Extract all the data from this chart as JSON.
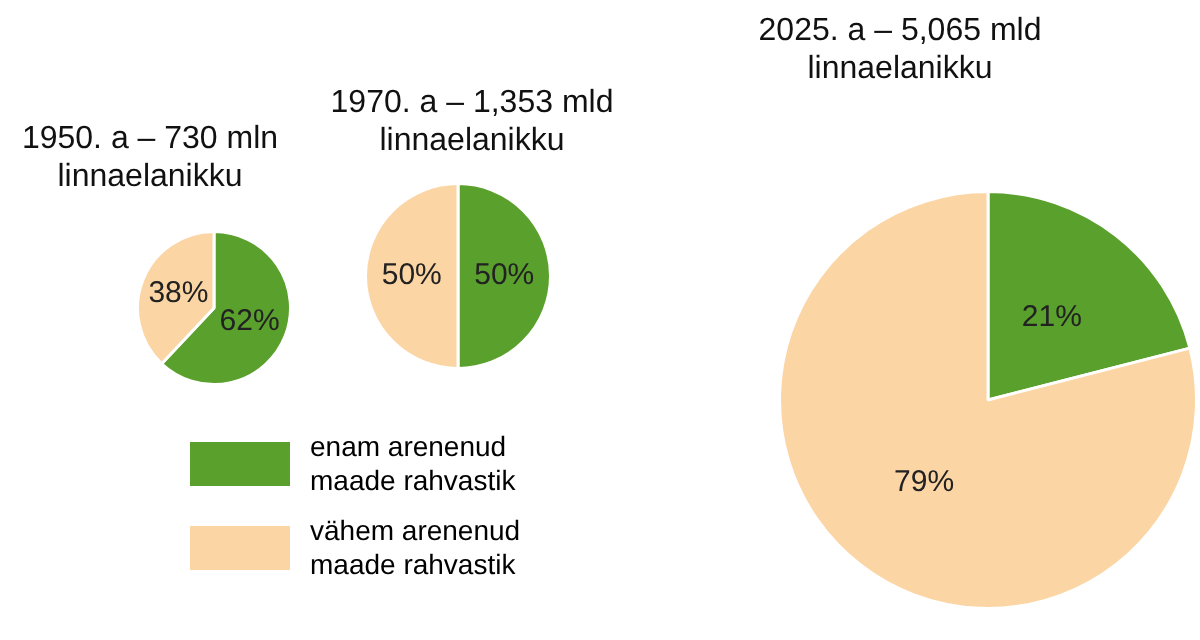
{
  "chart_data": [
    {
      "type": "pie",
      "title": "1950. a – 730 mln\nlinnaelanikku",
      "categories": [
        "enam arenenud\nmaade rahvastik",
        "vähem arenenud\nmaade rahvastik"
      ],
      "values": [
        62,
        38
      ],
      "colors": [
        "#5aa02c",
        "#fcd5a5"
      ],
      "value_labels": [
        "62%",
        "38%"
      ],
      "legend": "bottom"
    },
    {
      "type": "pie",
      "title": "1970. a – 1,353 mld\nlinnaelanikku",
      "categories": [
        null,
        null
      ],
      "values": [
        50,
        50
      ],
      "colors": [
        "#5aa02c",
        "#fcd5a5"
      ],
      "value_labels": [
        "50%",
        "50%"
      ]
    },
    {
      "type": "pie",
      "title": "2025. a – 5,065 mld\nlinnaelanikku",
      "categories": [
        null,
        null
      ],
      "values": [
        21,
        79
      ],
      "colors": [
        "#5aa02c",
        "#fcd5a5"
      ],
      "value_labels": [
        "21%",
        "79%"
      ]
    }
  ]
}
